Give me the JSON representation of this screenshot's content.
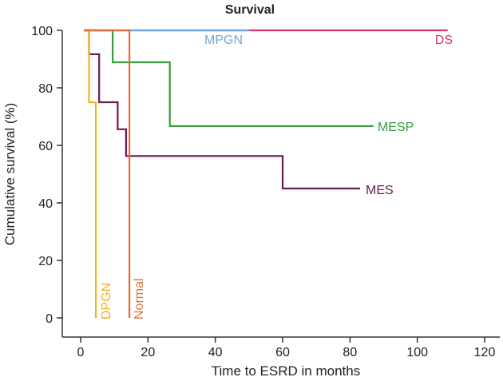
{
  "chart_data": {
    "type": "line",
    "step": true,
    "title": "Survival",
    "xlabel": "Time to ESRD in months",
    "ylabel": "Cumulative survival (%)",
    "xlim": [
      0,
      120
    ],
    "ylim": [
      0,
      100
    ],
    "xticks": [
      0,
      20,
      40,
      60,
      80,
      100,
      120
    ],
    "yticks": [
      0,
      20,
      40,
      60,
      80,
      100
    ],
    "series": [
      {
        "name": "DS",
        "color": "#d6336c",
        "label_orientation": "horizontal",
        "points": [
          [
            1,
            100
          ],
          [
            109,
            100
          ]
        ]
      },
      {
        "name": "MPGN",
        "color": "#6fa8dc",
        "label_orientation": "horizontal",
        "points": [
          [
            1,
            100
          ],
          [
            50,
            100
          ]
        ]
      },
      {
        "name": "MESP",
        "color": "#3a9b3f",
        "label_orientation": "horizontal",
        "points": [
          [
            1,
            100
          ],
          [
            9.5,
            100
          ],
          [
            9.5,
            88.9
          ],
          [
            26.5,
            88.9
          ],
          [
            26.5,
            66.7
          ],
          [
            87,
            66.7
          ]
        ]
      },
      {
        "name": "MES",
        "color": "#6b1a4f",
        "label_orientation": "horizontal",
        "points": [
          [
            1,
            100
          ],
          [
            2.5,
            100
          ],
          [
            2.5,
            91.7
          ],
          [
            5.5,
            91.7
          ],
          [
            5.5,
            75
          ],
          [
            11,
            75
          ],
          [
            11,
            65.6
          ],
          [
            13.5,
            65.6
          ],
          [
            13.5,
            56.3
          ],
          [
            60,
            56.3
          ],
          [
            60,
            45
          ],
          [
            83,
            45
          ]
        ]
      },
      {
        "name": "DPGN",
        "color": "#f0b323",
        "label_orientation": "vertical",
        "points": [
          [
            1,
            100
          ],
          [
            2.5,
            100
          ],
          [
            2.5,
            75
          ],
          [
            4.5,
            75
          ],
          [
            4.5,
            0
          ]
        ]
      },
      {
        "name": "Normal",
        "color": "#e0703a",
        "label_orientation": "vertical",
        "points": [
          [
            1,
            100
          ],
          [
            14.5,
            100
          ],
          [
            14.5,
            0
          ]
        ]
      }
    ]
  }
}
